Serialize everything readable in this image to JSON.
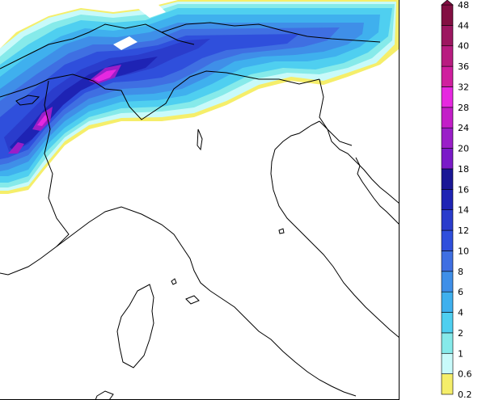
{
  "map": {
    "type": "precipitation-map",
    "region": "Northern Italy and the Alps"
  },
  "legend": {
    "levels": [
      "0.2",
      "0.6",
      "1",
      "2",
      "4",
      "6",
      "8",
      "10",
      "12",
      "14",
      "16",
      "18",
      "20",
      "24",
      "28",
      "32",
      "36",
      "40",
      "44",
      "48"
    ],
    "colors": [
      "#ffffff",
      "#f5ee6a",
      "#c8fafa",
      "#86eaea",
      "#4fcff0",
      "#3fb0ee",
      "#3f8fe8",
      "#3f6fe2",
      "#2f4fdc",
      "#2a3ccc",
      "#1e23b4",
      "#1a1696",
      "#7a1ac8",
      "#9a1ec8",
      "#c31ec8",
      "#e628e0",
      "#cf1f9e",
      "#b81c80",
      "#9c1660",
      "#820f42"
    ],
    "top_arrow": true
  }
}
